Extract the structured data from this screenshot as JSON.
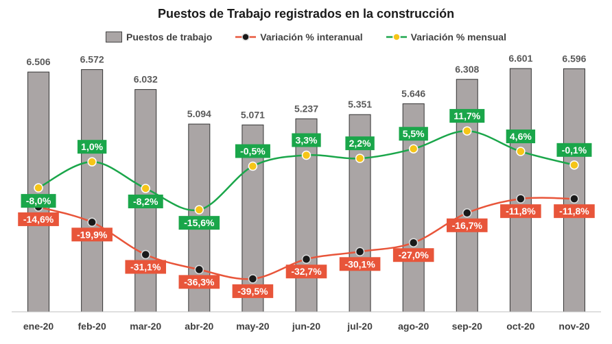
{
  "chart_data": {
    "type": "bar",
    "title": "Puestos de Trabajo registrados en la construcción",
    "categories": [
      "ene-20",
      "feb-20",
      "mar-20",
      "abr-20",
      "may-20",
      "jun-20",
      "jul-20",
      "ago-20",
      "sep-20",
      "oct-20",
      "nov-20"
    ],
    "series": [
      {
        "name": "Puestos de trabajo",
        "type": "bar",
        "values": [
          6506,
          6572,
          6032,
          5094,
          5071,
          5237,
          5351,
          5646,
          6308,
          6601,
          6596
        ],
        "labels": [
          "6.506",
          "6.572",
          "6.032",
          "5.094",
          "5.071",
          "5.237",
          "5.351",
          "5.646",
          "6.308",
          "6.601",
          "6.596"
        ],
        "color": "#aaa5a5"
      },
      {
        "name": "Variación % interanual",
        "type": "line",
        "values": [
          -14.6,
          -19.9,
          -31.1,
          -36.3,
          -39.5,
          -32.7,
          -30.1,
          -27.0,
          -16.7,
          -11.8,
          -11.8
        ],
        "labels": [
          "-14,6%",
          "-19,9%",
          "-31,1%",
          "-36,3%",
          "-39,5%",
          "-32,7%",
          "-30,1%",
          "-27,0%",
          "-16,7%",
          "-11,8%",
          "-11,8%"
        ],
        "color": "#e8553a",
        "marker_color": "#1a1a1a"
      },
      {
        "name": "Variación % mensual",
        "type": "line",
        "values": [
          -8.0,
          1.0,
          -8.2,
          -15.6,
          -0.5,
          3.3,
          2.2,
          5.5,
          11.7,
          4.6,
          -0.1
        ],
        "labels": [
          "-8,0%",
          "1,0%",
          "-8,2%",
          "-15,6%",
          "-0,5%",
          "3,3%",
          "2,2%",
          "5,5%",
          "11,7%",
          "4,6%",
          "-0,1%"
        ],
        "color": "#1aa64a",
        "marker_color": "#f5c518"
      }
    ],
    "legend_position": "top",
    "grid": false
  }
}
